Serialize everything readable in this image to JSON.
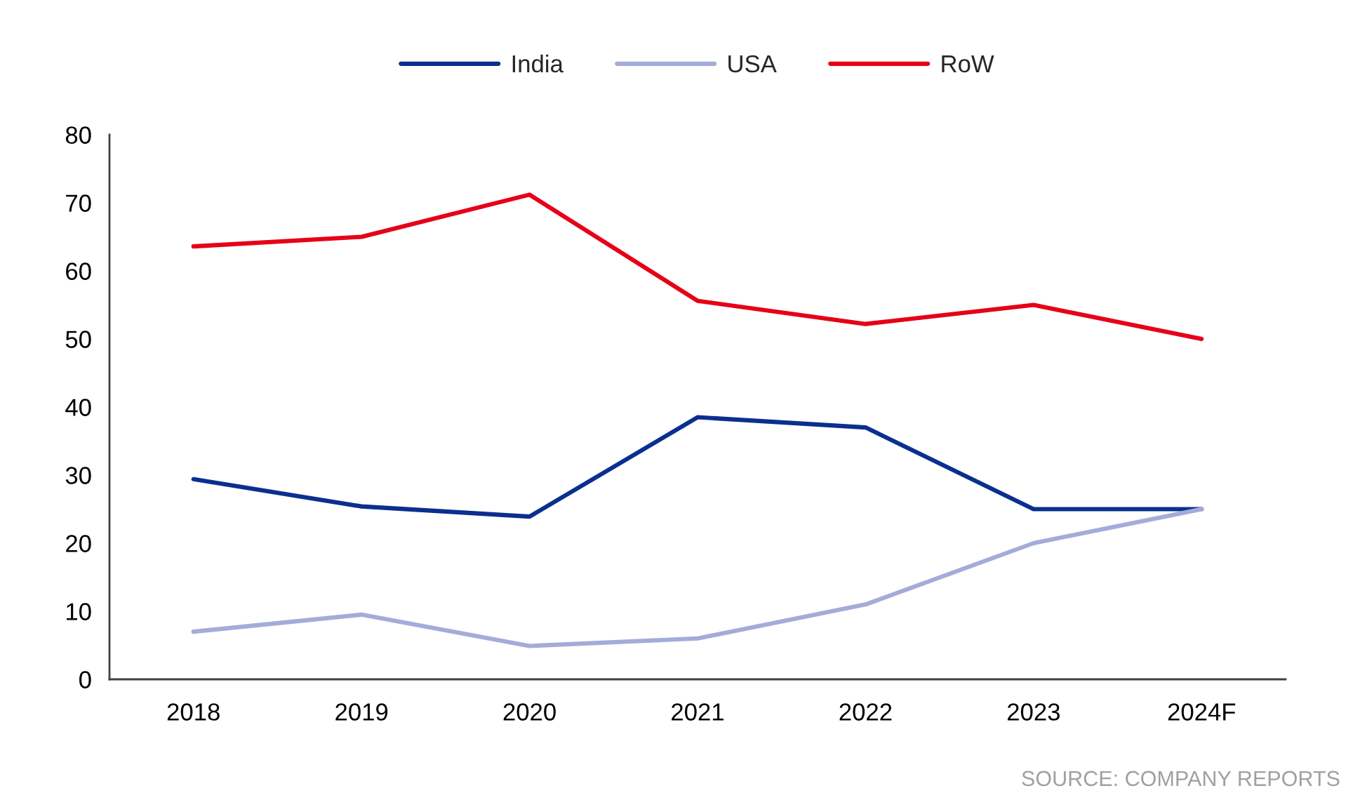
{
  "chart_data": {
    "type": "line",
    "categories": [
      "2018",
      "2019",
      "2020",
      "2021",
      "2022",
      "2023",
      "2024F"
    ],
    "series": [
      {
        "name": "India",
        "color": "#0a2f8f",
        "values": [
          29.4,
          25.4,
          23.9,
          38.5,
          37,
          25,
          25
        ]
      },
      {
        "name": "USA",
        "color": "#a3acd9",
        "values": [
          7,
          9.5,
          4.9,
          6,
          11,
          20,
          25
        ]
      },
      {
        "name": "RoW",
        "color": "#e60018",
        "values": [
          63.6,
          65,
          71.2,
          55.6,
          52.2,
          55,
          50
        ]
      }
    ],
    "ylim": [
      0,
      80
    ],
    "yticks": [
      0,
      10,
      20,
      30,
      40,
      50,
      60,
      70,
      80
    ],
    "legend": "top",
    "marker": "none",
    "line_style": "solid",
    "annotations": [
      "SOURCE: COMPANY REPORTS"
    ]
  }
}
